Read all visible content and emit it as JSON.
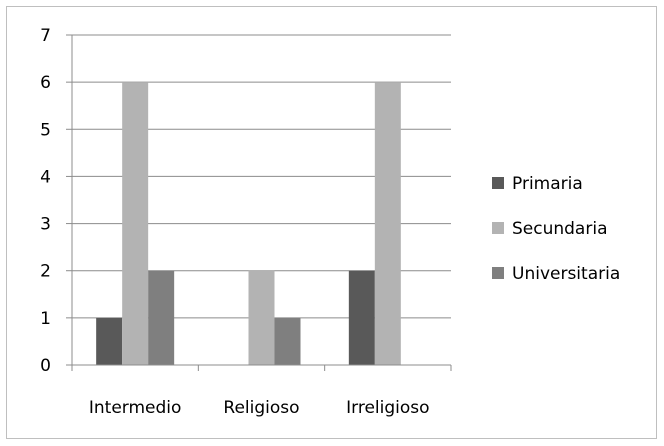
{
  "chart_data": {
    "type": "bar",
    "categories": [
      "Intermedio",
      "Religioso",
      "Irreligioso"
    ],
    "series": [
      {
        "name": "Primaria",
        "values": [
          1,
          0,
          2
        ]
      },
      {
        "name": "Secundaria",
        "values": [
          6,
          2,
          6
        ]
      },
      {
        "name": "Universitaria",
        "values": [
          2,
          1,
          0
        ]
      }
    ],
    "ylim": [
      0,
      7
    ],
    "yticks": [
      "0",
      "1",
      "2",
      "3",
      "4",
      "5",
      "6",
      "7"
    ],
    "grid": true,
    "legend_position": "right",
    "colors": [
      "#595959",
      "#b3b3b3",
      "#7f7f7f"
    ]
  }
}
